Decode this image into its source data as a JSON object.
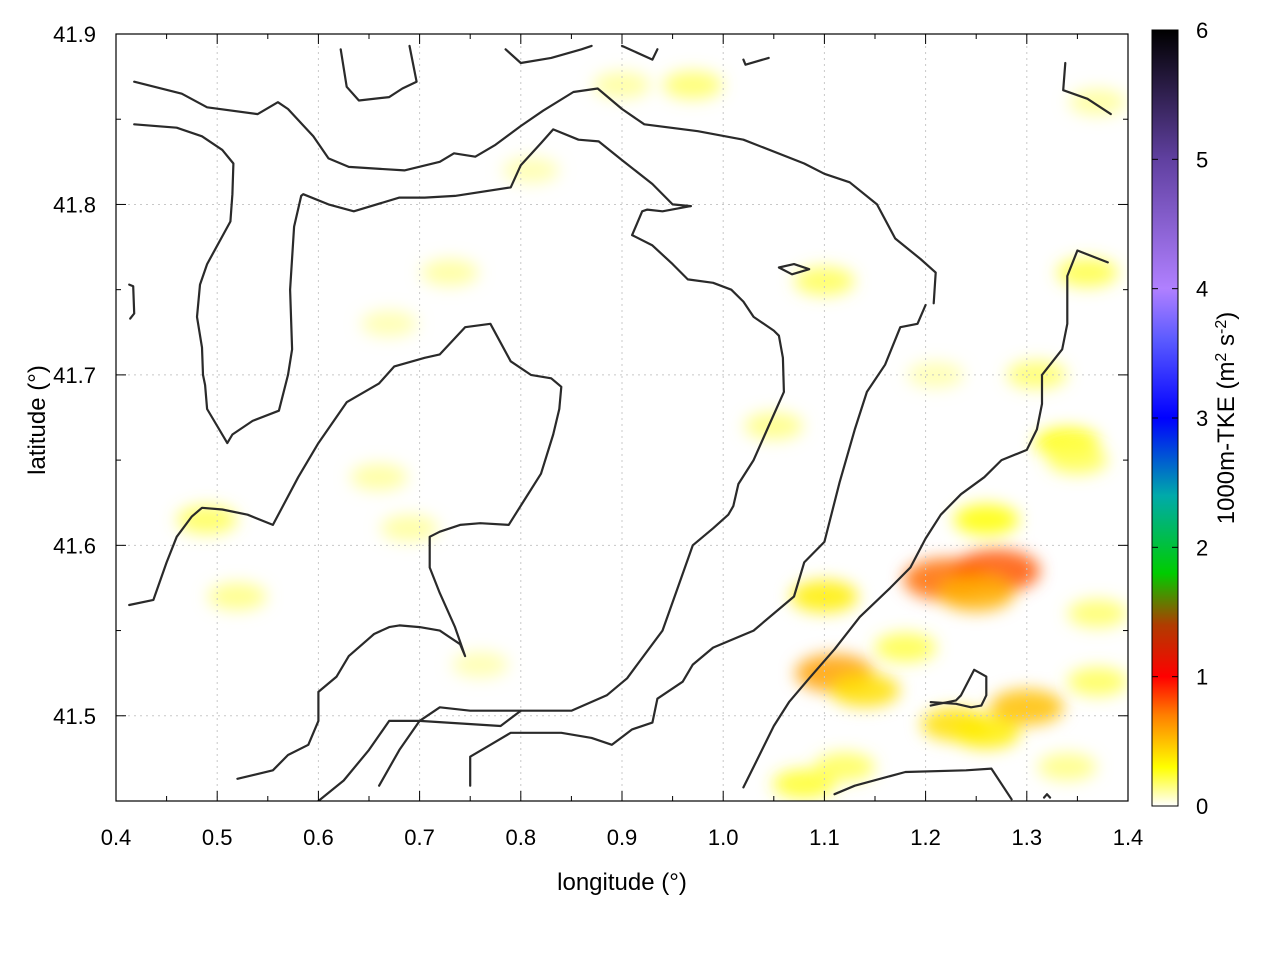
{
  "chart_data": {
    "type": "heatmap",
    "title": "",
    "xlabel": "longitude (°)",
    "ylabel": "latitude (°)",
    "xlim": [
      0.4,
      1.4
    ],
    "ylim": [
      41.45,
      41.9
    ],
    "xticks": [
      "0.4",
      "0.5",
      "0.6",
      "0.7",
      "0.8",
      "0.9",
      "1.0",
      "1.1",
      "1.2",
      "1.3",
      "1.4"
    ],
    "xtick_values": [
      0.4,
      0.5,
      0.6,
      0.7,
      0.8,
      0.9,
      1.0,
      1.1,
      1.2,
      1.3,
      1.4
    ],
    "yticks": [
      "41.5",
      "41.6",
      "41.7",
      "41.8",
      "41.9"
    ],
    "ytick_values": [
      41.5,
      41.6,
      41.7,
      41.8,
      41.9
    ],
    "grid": true,
    "colorbar": {
      "label_main": "1000m-TKE (m",
      "label_sup1": "2",
      "label_mid": " s",
      "label_sup2": "-2",
      "label_end": ")",
      "range": [
        0,
        6
      ],
      "ticks": [
        "0",
        "1",
        "2",
        "3",
        "4",
        "5",
        "6"
      ],
      "tick_values": [
        0,
        1,
        2,
        3,
        4,
        5,
        6
      ],
      "colormap": [
        [
          0.0,
          "#ffffff"
        ],
        [
          0.3,
          "#ffff00"
        ],
        [
          0.7,
          "#ff8000"
        ],
        [
          1.0,
          "#ff0000"
        ],
        [
          1.4,
          "#b03c00"
        ],
        [
          1.8,
          "#00cc00"
        ],
        [
          2.4,
          "#00aaaa"
        ],
        [
          3.0,
          "#0000ff"
        ],
        [
          3.6,
          "#5a5aff"
        ],
        [
          4.0,
          "#b080ff"
        ],
        [
          5.0,
          "#6040a0"
        ],
        [
          6.0,
          "#000000"
        ]
      ]
    },
    "tke_blobs": [
      {
        "lon": 1.22,
        "lat": 41.58,
        "value": 0.75
      },
      {
        "lon": 1.27,
        "lat": 41.585,
        "value": 0.8
      },
      {
        "lon": 1.25,
        "lat": 41.572,
        "value": 0.55
      },
      {
        "lon": 1.11,
        "lat": 41.525,
        "value": 0.6
      },
      {
        "lon": 1.14,
        "lat": 41.515,
        "value": 0.4
      },
      {
        "lon": 1.3,
        "lat": 41.505,
        "value": 0.5
      },
      {
        "lon": 1.23,
        "lat": 41.495,
        "value": 0.4
      },
      {
        "lon": 1.26,
        "lat": 41.49,
        "value": 0.35
      },
      {
        "lon": 1.1,
        "lat": 41.57,
        "value": 0.35
      },
      {
        "lon": 1.26,
        "lat": 41.615,
        "value": 0.3
      },
      {
        "lon": 1.34,
        "lat": 41.66,
        "value": 0.3
      },
      {
        "lon": 1.36,
        "lat": 41.76,
        "value": 0.22
      },
      {
        "lon": 1.35,
        "lat": 41.65,
        "value": 0.2
      },
      {
        "lon": 1.08,
        "lat": 41.46,
        "value": 0.25
      },
      {
        "lon": 1.12,
        "lat": 41.47,
        "value": 0.2
      },
      {
        "lon": 1.18,
        "lat": 41.54,
        "value": 0.22
      },
      {
        "lon": 1.37,
        "lat": 41.56,
        "value": 0.18
      },
      {
        "lon": 1.37,
        "lat": 41.52,
        "value": 0.2
      },
      {
        "lon": 1.34,
        "lat": 41.47,
        "value": 0.15
      },
      {
        "lon": 1.1,
        "lat": 41.755,
        "value": 0.2
      },
      {
        "lon": 1.05,
        "lat": 41.67,
        "value": 0.15
      },
      {
        "lon": 0.49,
        "lat": 41.615,
        "value": 0.2
      },
      {
        "lon": 0.52,
        "lat": 41.57,
        "value": 0.15
      },
      {
        "lon": 0.66,
        "lat": 41.64,
        "value": 0.12
      },
      {
        "lon": 0.69,
        "lat": 41.61,
        "value": 0.12
      },
      {
        "lon": 0.73,
        "lat": 41.76,
        "value": 0.12
      },
      {
        "lon": 0.67,
        "lat": 41.73,
        "value": 0.1
      },
      {
        "lon": 0.97,
        "lat": 41.87,
        "value": 0.18
      },
      {
        "lon": 0.9,
        "lat": 41.87,
        "value": 0.12
      },
      {
        "lon": 1.37,
        "lat": 41.86,
        "value": 0.12
      },
      {
        "lon": 1.31,
        "lat": 41.7,
        "value": 0.18
      },
      {
        "lon": 0.76,
        "lat": 41.53,
        "value": 0.1
      },
      {
        "lon": 0.81,
        "lat": 41.82,
        "value": 0.1
      },
      {
        "lon": 1.21,
        "lat": 41.7,
        "value": 0.1
      }
    ],
    "contours": [
      [
        [
          0.418,
          41.872
        ],
        [
          0.465,
          41.865
        ],
        [
          0.49,
          41.857
        ],
        [
          0.54,
          41.853
        ],
        [
          0.56,
          41.86
        ],
        [
          0.57,
          41.856
        ],
        [
          0.595,
          41.84
        ],
        [
          0.61,
          41.827
        ],
        [
          0.63,
          41.822
        ],
        [
          0.685,
          41.82
        ],
        [
          0.72,
          41.825
        ],
        [
          0.734,
          41.83
        ],
        [
          0.755,
          41.828
        ],
        [
          0.775,
          41.835
        ],
        [
          0.8,
          41.846
        ],
        [
          0.822,
          41.855
        ],
        [
          0.852,
          41.866
        ],
        [
          0.876,
          41.868
        ],
        [
          0.9,
          41.856
        ],
        [
          0.922,
          41.847
        ],
        [
          0.975,
          41.843
        ],
        [
          1.02,
          41.838
        ],
        [
          1.08,
          41.824
        ],
        [
          1.1,
          41.818
        ],
        [
          1.125,
          41.813
        ],
        [
          1.152,
          41.8
        ],
        [
          1.17,
          41.78
        ],
        [
          1.195,
          41.768
        ],
        [
          1.21,
          41.76
        ],
        [
          1.208,
          41.742
        ]
      ],
      [
        [
          0.418,
          41.847
        ],
        [
          0.46,
          41.845
        ],
        [
          0.485,
          41.84
        ],
        [
          0.505,
          41.832
        ],
        [
          0.516,
          41.824
        ],
        [
          0.515,
          41.806
        ],
        [
          0.513,
          41.79
        ],
        [
          0.49,
          41.765
        ],
        [
          0.483,
          41.753
        ],
        [
          0.48,
          41.734
        ],
        [
          0.485,
          41.716
        ],
        [
          0.486,
          41.7
        ],
        [
          0.488,
          41.694
        ],
        [
          0.49,
          41.68
        ],
        [
          0.5,
          41.67
        ],
        [
          0.51,
          41.66
        ],
        [
          0.515,
          41.665
        ],
        [
          0.535,
          41.673
        ],
        [
          0.561,
          41.679
        ],
        [
          0.57,
          41.7
        ],
        [
          0.574,
          41.715
        ],
        [
          0.572,
          41.75
        ],
        [
          0.576,
          41.787
        ],
        [
          0.583,
          41.805
        ],
        [
          0.585,
          41.806
        ],
        [
          0.61,
          41.8
        ],
        [
          0.635,
          41.796
        ],
        [
          0.68,
          41.804
        ],
        [
          0.705,
          41.804
        ],
        [
          0.735,
          41.805
        ],
        [
          0.79,
          41.81
        ],
        [
          0.8,
          41.823
        ],
        [
          0.82,
          41.836
        ],
        [
          0.832,
          41.844
        ],
        [
          0.857,
          41.838
        ],
        [
          0.877,
          41.837
        ],
        [
          0.9,
          41.826
        ],
        [
          0.93,
          41.812
        ],
        [
          0.95,
          41.8
        ],
        [
          0.968,
          41.799
        ]
      ],
      [
        [
          0.968,
          41.799
        ],
        [
          0.94,
          41.796
        ],
        [
          0.925,
          41.797
        ],
        [
          0.92,
          41.796
        ],
        [
          0.91,
          41.782
        ],
        [
          0.93,
          41.776
        ],
        [
          0.95,
          41.765
        ],
        [
          0.965,
          41.756
        ],
        [
          0.99,
          41.754
        ],
        [
          1.008,
          41.75
        ],
        [
          1.02,
          41.743
        ],
        [
          1.03,
          41.734
        ],
        [
          1.05,
          41.726
        ],
        [
          1.055,
          41.723
        ],
        [
          1.059,
          41.71
        ],
        [
          1.06,
          41.69
        ],
        [
          1.045,
          41.67
        ],
        [
          1.03,
          41.65
        ],
        [
          1.015,
          41.636
        ],
        [
          1.01,
          41.623
        ],
        [
          1.005,
          41.618
        ],
        [
          0.99,
          41.61
        ],
        [
          0.97,
          41.6
        ],
        [
          0.955,
          41.575
        ],
        [
          0.94,
          41.55
        ],
        [
          0.915,
          41.53
        ],
        [
          0.905,
          41.522
        ],
        [
          0.885,
          41.512
        ],
        [
          0.85,
          41.503
        ],
        [
          0.8,
          41.503
        ],
        [
          0.78,
          41.494
        ],
        [
          0.7,
          41.497
        ],
        [
          0.67,
          41.497
        ],
        [
          0.65,
          41.48
        ],
        [
          0.625,
          41.462
        ],
        [
          0.6,
          41.45
        ]
      ],
      [
        [
          0.413,
          41.565
        ],
        [
          0.437,
          41.568
        ],
        [
          0.45,
          41.59
        ],
        [
          0.46,
          41.605
        ],
        [
          0.475,
          41.617
        ],
        [
          0.485,
          41.622
        ],
        [
          0.505,
          41.621
        ],
        [
          0.53,
          41.618
        ],
        [
          0.555,
          41.612
        ],
        [
          0.58,
          41.64
        ],
        [
          0.6,
          41.66
        ],
        [
          0.628,
          41.684
        ],
        [
          0.66,
          41.695
        ],
        [
          0.675,
          41.705
        ],
        [
          0.705,
          41.71
        ],
        [
          0.72,
          41.712
        ],
        [
          0.745,
          41.728
        ],
        [
          0.77,
          41.73
        ],
        [
          0.79,
          41.708
        ],
        [
          0.81,
          41.7
        ],
        [
          0.83,
          41.698
        ],
        [
          0.84,
          41.693
        ],
        [
          0.838,
          41.68
        ],
        [
          0.832,
          41.665
        ],
        [
          0.82,
          41.642
        ],
        [
          0.805,
          41.628
        ],
        [
          0.788,
          41.612
        ],
        [
          0.76,
          41.613
        ],
        [
          0.74,
          41.612
        ],
        [
          0.72,
          41.608
        ],
        [
          0.71,
          41.605
        ],
        [
          0.71,
          41.587
        ],
        [
          0.72,
          41.572
        ],
        [
          0.735,
          41.552
        ],
        [
          0.745,
          41.535
        ],
        [
          0.74,
          41.542
        ],
        [
          0.72,
          41.55
        ],
        [
          0.7,
          41.552
        ],
        [
          0.68,
          41.553
        ],
        [
          0.67,
          41.552
        ],
        [
          0.655,
          41.548
        ],
        [
          0.63,
          41.535
        ],
        [
          0.618,
          41.523
        ],
        [
          0.6,
          41.514
        ],
        [
          0.6,
          41.497
        ],
        [
          0.59,
          41.483
        ],
        [
          0.57,
          41.477
        ],
        [
          0.555,
          41.468
        ],
        [
          0.52,
          41.463
        ]
      ],
      [
        [
          0.66,
          41.459
        ],
        [
          0.68,
          41.48
        ],
        [
          0.7,
          41.497
        ],
        [
          0.72,
          41.505
        ],
        [
          0.75,
          41.503
        ],
        [
          0.8,
          41.503
        ]
      ],
      [
        [
          0.75,
          41.459
        ],
        [
          0.75,
          41.476
        ],
        [
          0.77,
          41.483
        ],
        [
          0.79,
          41.49
        ],
        [
          0.84,
          41.49
        ],
        [
          0.87,
          41.487
        ],
        [
          0.89,
          41.483
        ],
        [
          0.91,
          41.492
        ],
        [
          0.93,
          41.496
        ],
        [
          0.935,
          41.51
        ],
        [
          0.96,
          41.52
        ],
        [
          0.97,
          41.53
        ],
        [
          0.99,
          41.54
        ],
        [
          1.03,
          41.55
        ],
        [
          1.05,
          41.56
        ],
        [
          1.07,
          41.57
        ],
        [
          1.08,
          41.59
        ],
        [
          1.1,
          41.602
        ],
        [
          1.115,
          41.637
        ],
        [
          1.13,
          41.668
        ],
        [
          1.142,
          41.69
        ],
        [
          1.16,
          41.706
        ],
        [
          1.175,
          41.728
        ],
        [
          1.192,
          41.73
        ],
        [
          1.2,
          41.741
        ]
      ],
      [
        [
          1.02,
          41.458
        ],
        [
          1.03,
          41.47
        ],
        [
          1.05,
          41.494
        ],
        [
          1.065,
          41.508
        ],
        [
          1.085,
          41.522
        ],
        [
          1.11,
          41.539
        ],
        [
          1.135,
          41.558
        ],
        [
          1.165,
          41.575
        ],
        [
          1.185,
          41.587
        ],
        [
          1.2,
          41.604
        ],
        [
          1.215,
          41.618
        ],
        [
          1.235,
          41.63
        ],
        [
          1.258,
          41.64
        ],
        [
          1.275,
          41.65
        ],
        [
          1.3,
          41.656
        ],
        [
          1.31,
          41.668
        ],
        [
          1.315,
          41.683
        ],
        [
          1.315,
          41.7
        ],
        [
          1.335,
          41.715
        ],
        [
          1.34,
          41.73
        ],
        [
          1.34,
          41.758
        ],
        [
          1.35,
          41.773
        ],
        [
          1.38,
          41.766
        ]
      ],
      [
        [
          0.413,
          41.753
        ],
        [
          0.417,
          41.752
        ],
        [
          0.418,
          41.736
        ],
        [
          0.414,
          41.733
        ]
      ],
      [
        [
          0.622,
          41.891
        ],
        [
          0.628,
          41.869
        ],
        [
          0.64,
          41.861
        ],
        [
          0.67,
          41.863
        ],
        [
          0.683,
          41.868
        ],
        [
          0.697,
          41.872
        ],
        [
          0.69,
          41.893
        ]
      ],
      [
        [
          0.785,
          41.891
        ],
        [
          0.8,
          41.883
        ],
        [
          0.83,
          41.886
        ],
        [
          0.86,
          41.891
        ],
        [
          0.87,
          41.893
        ]
      ],
      [
        [
          0.9,
          41.893
        ],
        [
          0.93,
          41.885
        ],
        [
          0.935,
          41.891
        ]
      ],
      [
        [
          1.02,
          41.885
        ],
        [
          1.022,
          41.882
        ],
        [
          1.045,
          41.886
        ]
      ],
      [
        [
          1.338,
          41.883
        ],
        [
          1.336,
          41.867
        ],
        [
          1.36,
          41.862
        ],
        [
          1.383,
          41.853
        ]
      ],
      [
        [
          1.055,
          41.763
        ],
        [
          1.07,
          41.765
        ],
        [
          1.085,
          41.762
        ],
        [
          1.068,
          41.759
        ],
        [
          1.055,
          41.763
        ]
      ],
      [
        [
          1.205,
          41.508
        ],
        [
          1.23,
          41.507
        ],
        [
          1.245,
          41.505
        ],
        [
          1.255,
          41.506
        ],
        [
          1.26,
          41.512
        ],
        [
          1.26,
          41.523
        ],
        [
          1.248,
          41.527
        ],
        [
          1.235,
          41.512
        ],
        [
          1.23,
          41.509
        ],
        [
          1.205,
          41.506
        ]
      ],
      [
        [
          1.11,
          41.454
        ],
        [
          1.13,
          41.459
        ],
        [
          1.18,
          41.467
        ],
        [
          1.24,
          41.468
        ],
        [
          1.265,
          41.469
        ],
        [
          1.285,
          41.451
        ]
      ],
      [
        [
          1.317,
          41.452
        ],
        [
          1.32,
          41.454
        ],
        [
          1.323,
          41.452
        ]
      ]
    ]
  }
}
